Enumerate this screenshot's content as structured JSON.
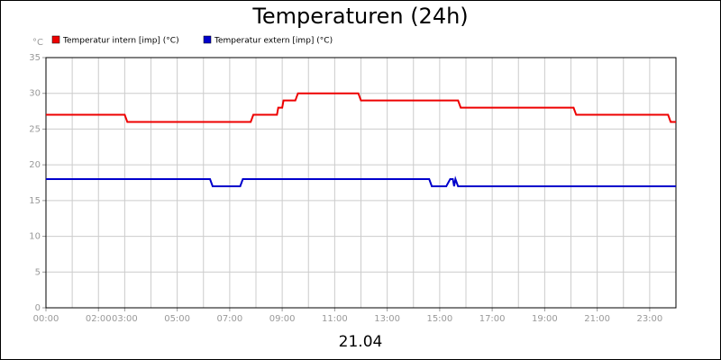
{
  "chart_data": {
    "type": "line",
    "title": "Temperaturen (24h)",
    "ylabel": "°C",
    "xlabel": "21.04",
    "xlim": [
      0,
      24
    ],
    "ylim": [
      0,
      35
    ],
    "yticks": [
      0,
      5,
      10,
      15,
      20,
      25,
      30,
      35
    ],
    "xticks": [
      {
        "value": 0,
        "label": "00:00"
      },
      {
        "value": 2,
        "label": "02:00"
      },
      {
        "value": 3,
        "label": "03:00"
      },
      {
        "value": 5,
        "label": "05:00"
      },
      {
        "value": 7,
        "label": "07:00"
      },
      {
        "value": 9,
        "label": "09:00"
      },
      {
        "value": 11,
        "label": "11:00"
      },
      {
        "value": 13,
        "label": "13:00"
      },
      {
        "value": 15,
        "label": "15:00"
      },
      {
        "value": 17,
        "label": "17:00"
      },
      {
        "value": 19,
        "label": "19:00"
      },
      {
        "value": 21,
        "label": "21:00"
      },
      {
        "value": 23,
        "label": "23:00"
      }
    ],
    "grid": true,
    "series": [
      {
        "name": "Temperatur intern [imp] (°C)",
        "color": "#ee0000",
        "x": [
          0,
          3.0,
          3.1,
          7.8,
          7.9,
          8.8,
          8.85,
          9.0,
          9.05,
          9.5,
          9.6,
          11.9,
          12.0,
          15.7,
          15.8,
          20.1,
          20.2,
          23.7,
          23.8,
          24
        ],
        "values": [
          27,
          27,
          26,
          26,
          27,
          27,
          28,
          28,
          29,
          29,
          30,
          30,
          29,
          29,
          28,
          28,
          27,
          27,
          26,
          26
        ]
      },
      {
        "name": "Temperatur extern [imp] (°C)",
        "color": "#0000cc",
        "x": [
          0,
          6.25,
          6.35,
          7.4,
          7.5,
          14.6,
          14.7,
          15.25,
          15.4,
          15.5,
          15.55,
          15.6,
          15.7,
          24
        ],
        "values": [
          18,
          18,
          17,
          17,
          18,
          18,
          17,
          17,
          18,
          18,
          17,
          18,
          17,
          17
        ]
      }
    ]
  }
}
